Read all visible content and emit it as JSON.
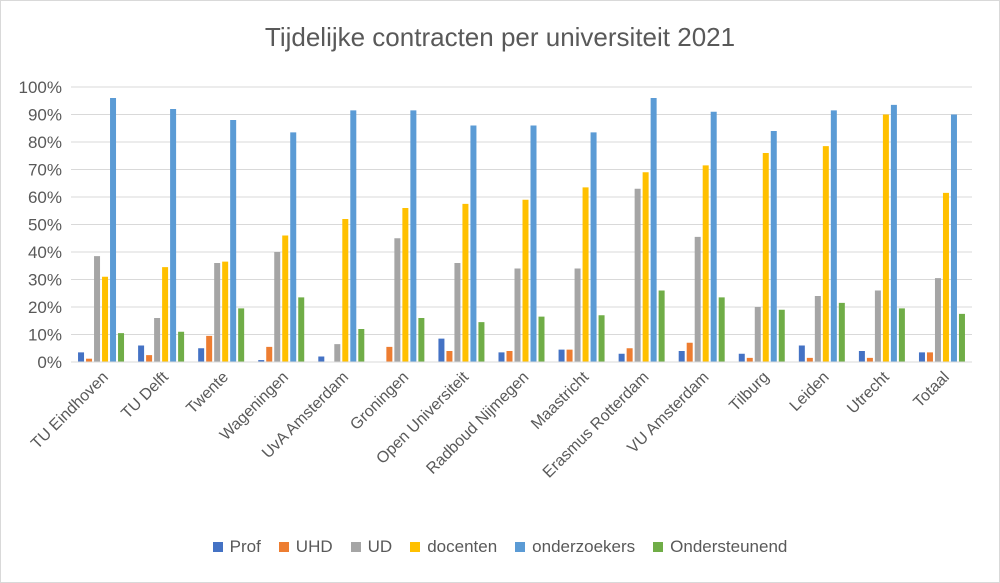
{
  "chart_data": {
    "type": "bar",
    "title": "Tijdelijke contracten per universiteit 2021",
    "ylim": [
      0,
      100
    ],
    "yticks": [
      "0%",
      "10%",
      "20%",
      "30%",
      "40%",
      "50%",
      "60%",
      "70%",
      "80%",
      "90%",
      "100%"
    ],
    "grid": true,
    "legend_position": "bottom",
    "categories": [
      "TU Eindhoven",
      "TU Delft",
      "Twente",
      "Wageningen",
      "UvA Amsterdam",
      "Groningen",
      "Open Universiteit",
      "Radboud Nijmegen",
      "Maastricht",
      "Erasmus Rotterdam",
      "VU Amsterdam",
      "Tilburg",
      "Leiden",
      "Utrecht",
      "Totaal"
    ],
    "series": [
      {
        "name": "Prof",
        "color": "#4472c4",
        "values": [
          3.5,
          6,
          5,
          0.7,
          2,
          0,
          8.5,
          3.5,
          4.5,
          3,
          4,
          3,
          6,
          4,
          3.5
        ]
      },
      {
        "name": "UHD",
        "color": "#ed7d31",
        "values": [
          1.2,
          2.5,
          9.5,
          5.5,
          0,
          5.5,
          4,
          4,
          4.5,
          5,
          7,
          1.5,
          1.5,
          1.5,
          3.5
        ]
      },
      {
        "name": "UD",
        "color": "#a5a5a5",
        "values": [
          38.5,
          16,
          36,
          40,
          6.5,
          45,
          36,
          34,
          34,
          63,
          45.5,
          20,
          24,
          26,
          30.5
        ]
      },
      {
        "name": "docenten",
        "color": "#ffc000",
        "values": [
          31,
          34.5,
          36.5,
          46,
          52,
          56,
          57.5,
          59,
          63.5,
          69,
          71.5,
          76,
          78.5,
          90,
          61.5
        ]
      },
      {
        "name": "onderzoekers",
        "color": "#5b9bd5",
        "values": [
          96,
          92,
          88,
          83.5,
          91.5,
          91.5,
          86,
          86,
          83.5,
          96,
          91,
          84,
          91.5,
          93.5,
          90
        ]
      },
      {
        "name": "Ondersteunend",
        "color": "#70ad47",
        "values": [
          10.5,
          11,
          19.5,
          23.5,
          12,
          16,
          14.5,
          16.5,
          17,
          26,
          23.5,
          19,
          21.5,
          19.5,
          17.5
        ]
      }
    ]
  }
}
